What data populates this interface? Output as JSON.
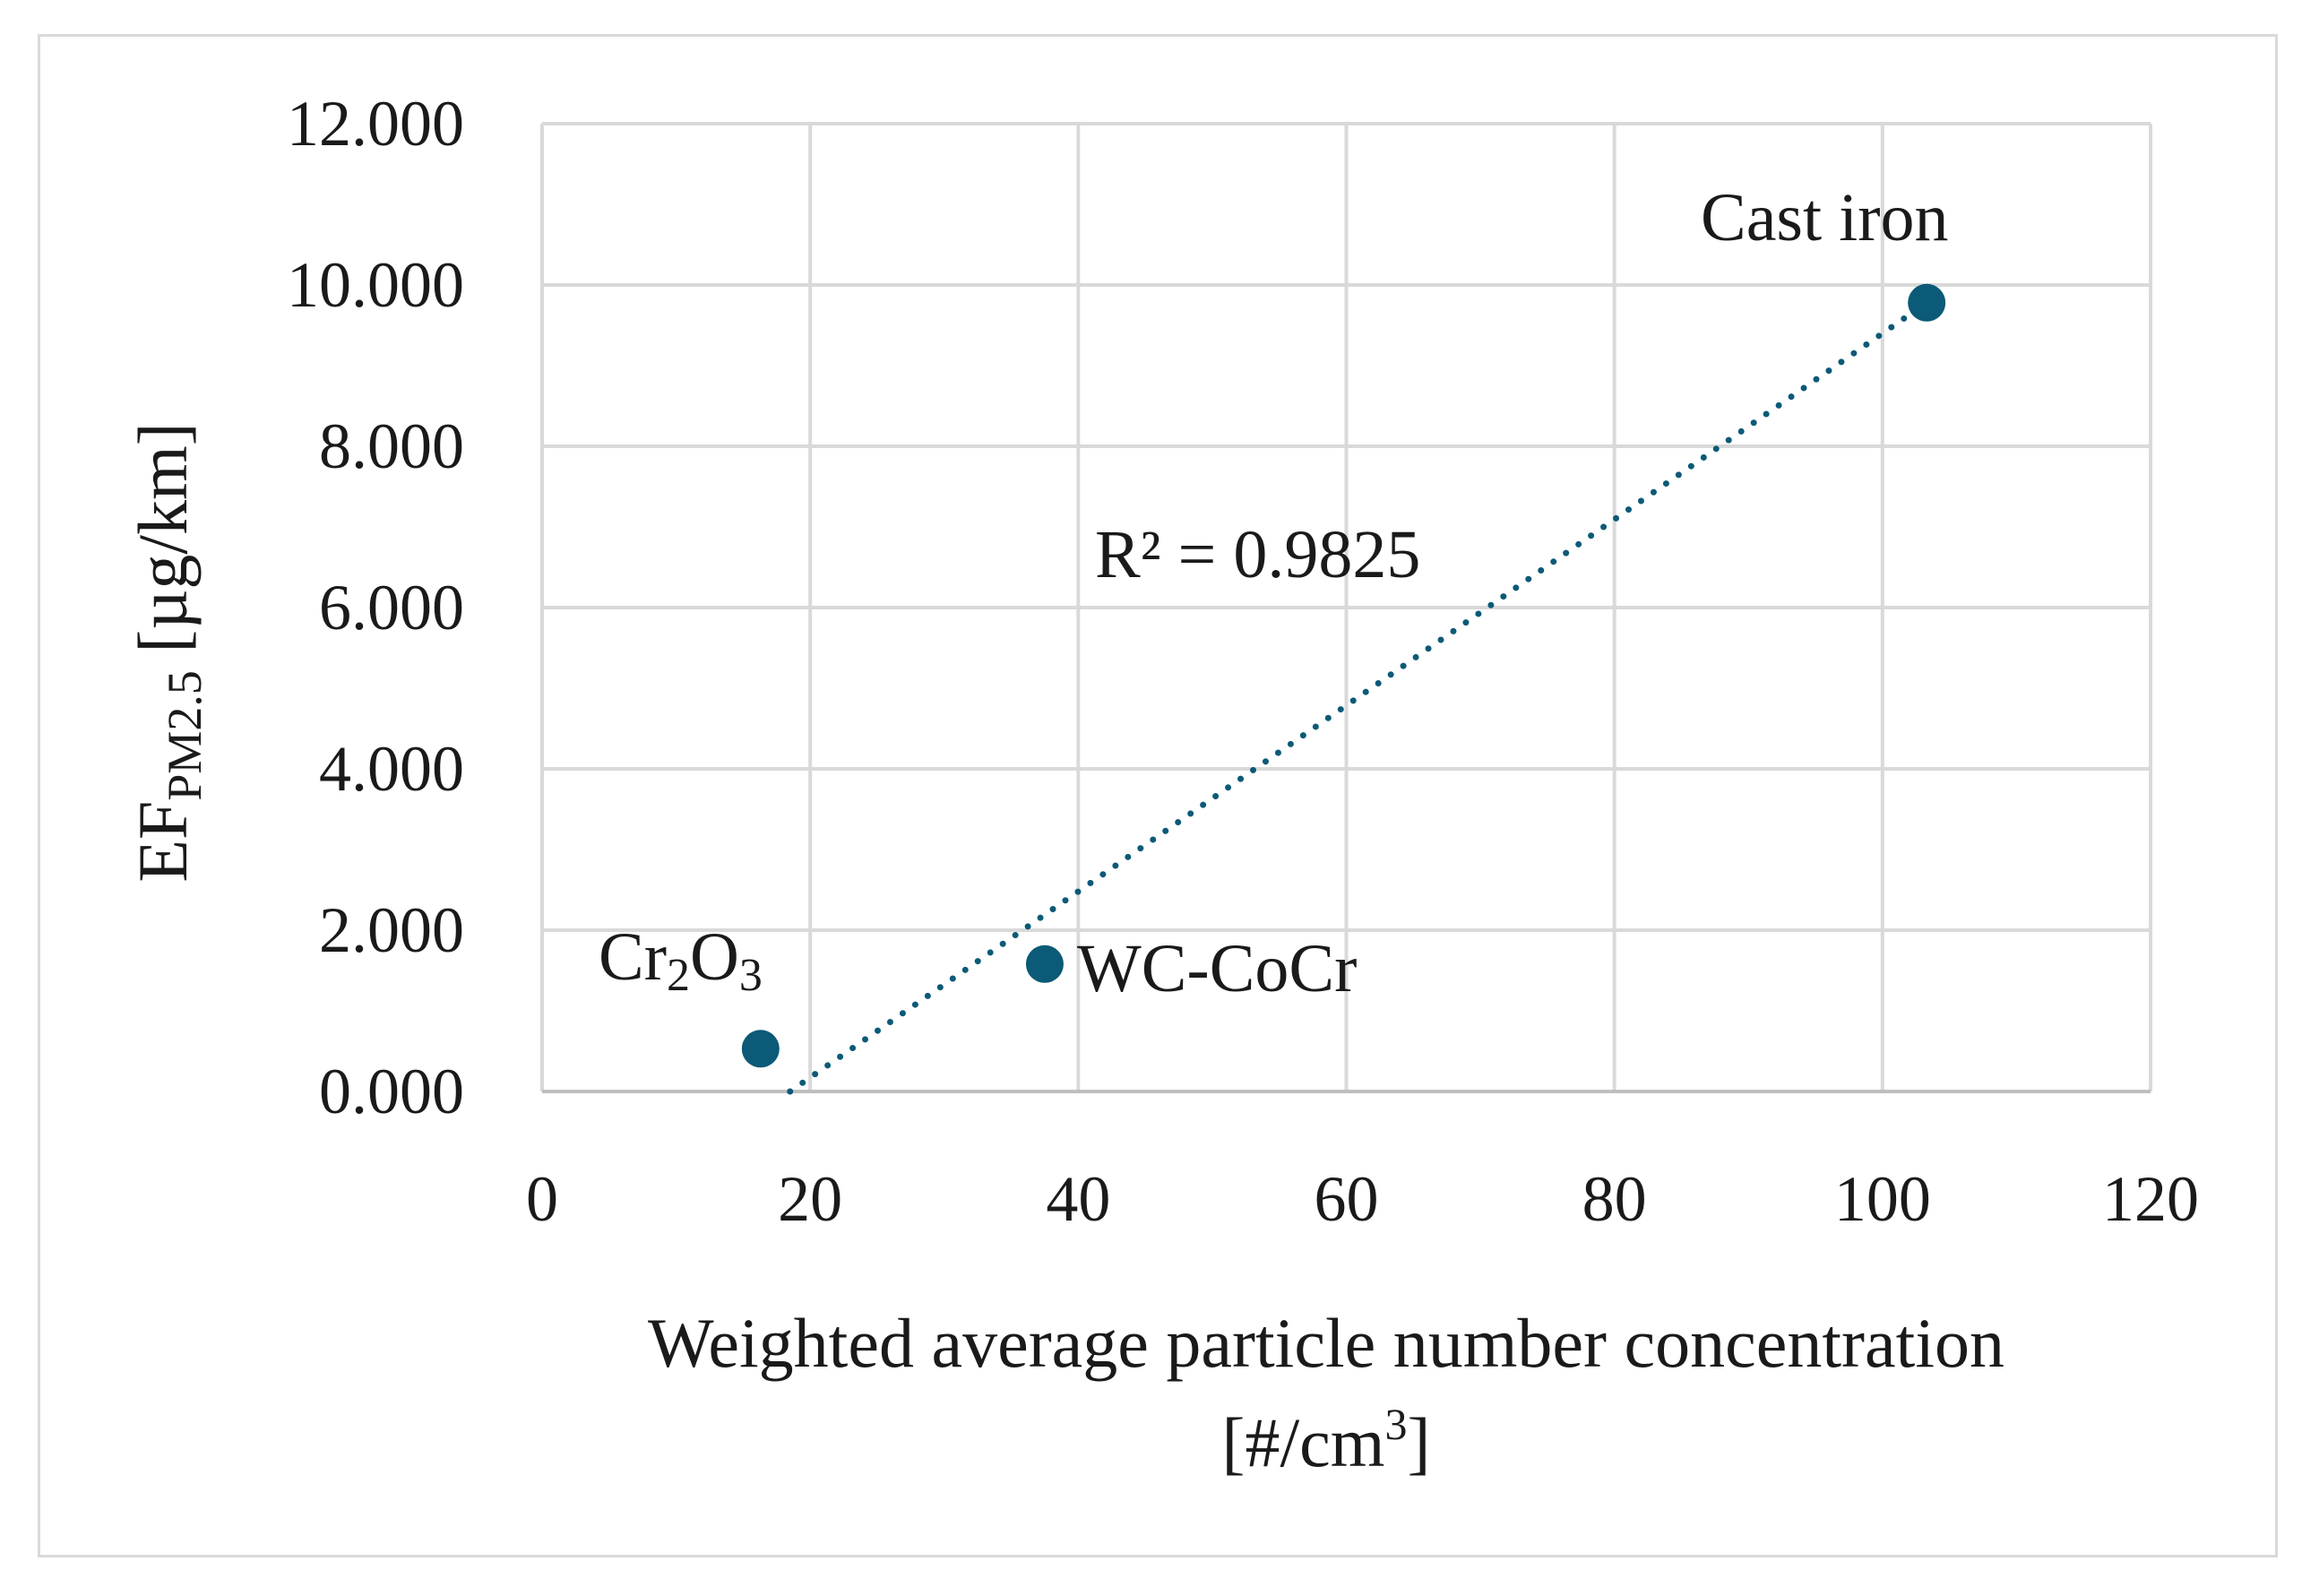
{
  "chart_data": {
    "type": "scatter",
    "xlabel_line1": "Weighted average particle number concentration",
    "xlabel_line2_pre": "[#/cm",
    "xlabel_line2_sup": "3",
    "xlabel_line2_post": "]",
    "ylabel_main": "EF",
    "ylabel_sub": "PM2.5",
    "ylabel_post": " [µg/km]",
    "xlim": [
      0,
      120
    ],
    "ylim": [
      0,
      12
    ],
    "x_ticks": [
      "0",
      "20",
      "40",
      "60",
      "80",
      "100",
      "120"
    ],
    "y_ticks": [
      "0.000",
      "2.000",
      "4.000",
      "6.000",
      "8.000",
      "10.000",
      "12.000"
    ],
    "grid": true,
    "marker_color": "#0b5a77",
    "points": [
      {
        "label_main": "Cr",
        "label_sub1": "2",
        "label_mid": "O",
        "label_sub2": "3",
        "x": 16.3,
        "y": 0.53
      },
      {
        "label": "WC-CoCr",
        "x": 37.5,
        "y": 1.58
      },
      {
        "label": "Cast iron",
        "x": 103.3,
        "y": 9.78
      }
    ],
    "trendline": {
      "style": "dotted",
      "x_start": 18.5,
      "x_end": 103.3,
      "y_start": 0.0,
      "y_end": 9.78
    },
    "annotation": "R² = 0.9825"
  }
}
